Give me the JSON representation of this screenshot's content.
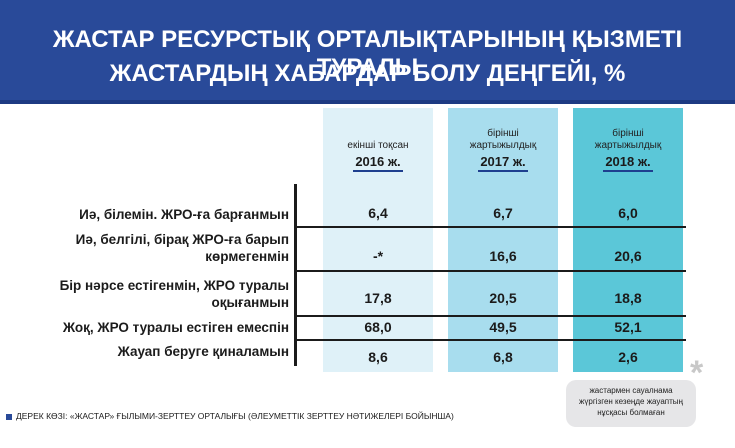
{
  "header": {
    "title_line1": "ЖАСТАР РЕСУРСТЫҚ ОРТАЛЫҚТАРЫНЫҢ ҚЫЗМЕТІ ТУРАЛЫ",
    "title_line2": "ЖАСТАРДЫҢ ХАБАРДАР БОЛУ ДЕҢГЕЙІ, %"
  },
  "columns": [
    {
      "sub": "екінші тоқсан",
      "year": "2016 ж.",
      "color": "#dff1f8"
    },
    {
      "sub": "бірінші жартыжылдық",
      "year": "2017 ж.",
      "color": "#a8ddee"
    },
    {
      "sub": "бірінші жартыжылдық",
      "year": "2018 ж.",
      "color": "#5bc7d8"
    }
  ],
  "rows": [
    {
      "label_l1": "Иә, білемін. ЖРО-ға барғанмын",
      "label_l2": "",
      "values": [
        "6,4",
        "6,7",
        "6,0"
      ]
    },
    {
      "label_l1": "Иә, белгілі, бірақ ЖРО-ға барып",
      "label_l2": "көрмегенмін",
      "values": [
        "-*",
        "16,6",
        "20,6"
      ]
    },
    {
      "label_l1": "Бір нәрсе естігенмін, ЖРО туралы",
      "label_l2": "оқығанмын",
      "values": [
        "17,8",
        "20,5",
        "18,8"
      ]
    },
    {
      "label_l1": "Жоқ, ЖРО туралы естіген емеспін",
      "label_l2": "",
      "values": [
        "68,0",
        "49,5",
        "52,1"
      ]
    },
    {
      "label_l1": "Жауап беруге қиналамын",
      "label_l2": "",
      "values": [
        "8,6",
        "6,8",
        "2,6"
      ]
    }
  ],
  "source": "ДЕРЕК КӨЗІ: «ЖАСТАР» ҒЫЛЫМИ-ЗЕРТТЕУ ОРТАЛЫҒЫ (ӘЛЕУМЕТТІК ЗЕРТТЕУ НӘТИЖЕЛЕРІ БОЙЫНША)",
  "note": {
    "line1": "жастармен сауалнама",
    "line2": "жүргізген кезеңде жауаптың",
    "line3": "нұсқасы болмаған",
    "star": "*"
  },
  "chart_data": {
    "type": "table",
    "title": "ЖАСТАР РЕСУРСТЫҚ ОРТАЛЫҚТАРЫНЫҢ ҚЫЗМЕТІ ТУРАЛЫ ЖАСТАРДЫҢ ХАБАРДАР БОЛУ ДЕҢГЕЙІ, %",
    "categories": [
      "Иә, білемін. ЖРО-ға барғанмын",
      "Иә, белгілі, бірақ ЖРО-ға барып көрмегенмін",
      "Бір нәрсе естігенмін, ЖРО туралы оқығанмын",
      "Жоқ, ЖРО туралы естіген емеспін",
      "Жауап беруге қиналамын"
    ],
    "series": [
      {
        "name": "екінші тоқсан 2016 ж.",
        "values": [
          6.4,
          null,
          17.8,
          68.0,
          8.6
        ]
      },
      {
        "name": "бірінші жартыжылдық 2017 ж.",
        "values": [
          6.7,
          16.6,
          20.5,
          49.5,
          6.8
        ]
      },
      {
        "name": "бірінші жартыжылдық 2018 ж.",
        "values": [
          6.0,
          20.6,
          18.8,
          52.1,
          2.6
        ]
      }
    ]
  }
}
